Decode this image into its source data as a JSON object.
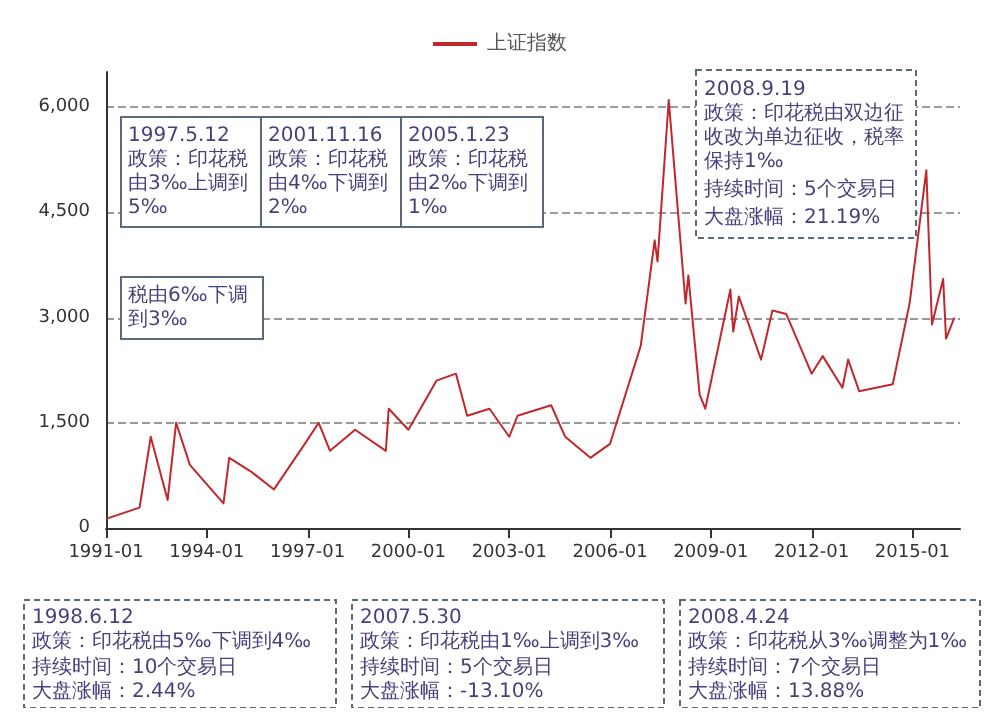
{
  "chart_data": {
    "type": "line",
    "x": [
      "1991-01",
      "1992-01",
      "1992-05",
      "1992-11",
      "1993-02",
      "1993-07",
      "1994-07",
      "1994-09",
      "1995-05",
      "1996-01",
      "1996-12",
      "1997-05",
      "1997-09",
      "1998-06",
      "1999-05",
      "1999-06",
      "2000-01",
      "2000-11",
      "2001-06",
      "2001-10",
      "2002-06",
      "2003-01",
      "2003-04",
      "2004-04",
      "2004-09",
      "2005-06",
      "2006-01",
      "2006-12",
      "2007-05",
      "2007-06",
      "2007-10",
      "2008-04",
      "2008-05",
      "2008-09",
      "2008-11",
      "2009-08",
      "2009-09",
      "2009-11",
      "2010-07",
      "2010-11",
      "2011-04",
      "2012-01",
      "2012-05",
      "2012-12",
      "2013-02",
      "2013-06",
      "2014-06",
      "2014-12",
      "2015-06",
      "2015-08",
      "2015-12",
      "2016-01",
      "2016-04"
    ],
    "series": [
      {
        "name": "上证指数",
        "color": "#c0282d",
        "values": [
          130,
          290,
          1300,
          400,
          1500,
          900,
          350,
          1000,
          800,
          550,
          1200,
          1500,
          1100,
          1400,
          1100,
          1700,
          1400,
          2100,
          2200,
          1600,
          1700,
          1300,
          1600,
          1750,
          1300,
          1000,
          1200,
          2600,
          4100,
          3800,
          6100,
          3200,
          3600,
          1900,
          1700,
          3400,
          2800,
          3300,
          2400,
          3100,
          3050,
          2200,
          2450,
          2000,
          2400,
          1950,
          2050,
          3200,
          5100,
          2900,
          3550,
          2700,
          3000
        ]
      }
    ],
    "xlim": [
      "1991-01",
      "2016-06"
    ],
    "xticks": [
      "1991-01",
      "1994-01",
      "1997-01",
      "2000-01",
      "2003-01",
      "2006-01",
      "2009-01",
      "2012-01",
      "2015-01"
    ],
    "ylim": [
      0,
      6500
    ],
    "yticks": [
      {
        "value": 0,
        "label": "0"
      },
      {
        "value": 1500,
        "label": "1,500"
      },
      {
        "value": 3000,
        "label": "3,000"
      },
      {
        "value": 4500,
        "label": "4,500"
      },
      {
        "value": 6000,
        "label": "6,000"
      }
    ],
    "grid": "y",
    "legend": "top",
    "marker": "none",
    "annotations": [
      "税由6‰下调到3‰",
      "1997.5.12\n政策：印花税由3‰上调到5‰",
      "2001.11.16\n政策：印花税由4‰下调到2‰",
      "2005.1.23\n政策：印花税由2‰下调到1‰",
      "2008.9.19\n政策：印花税由双边征收改为单边征收，税率保持1‰",
      "持续时间：5个交易日",
      "大盘涨幅：21.19%",
      "1998.6.12\n政策：印花税由5‰下调到4‰",
      "持续时间：10个交易日",
      "大盘涨幅：2.44%",
      "2007.5.30\n政策：印花税由1‰上调到3‰",
      "持续时间：5个交易日",
      "大盘涨幅：-13.10%",
      "2008.4.24\n政策：印花税从3‰调整为1‰",
      "持续时间：7个交易日",
      "大盘涨幅：13.88%"
    ]
  }
}
